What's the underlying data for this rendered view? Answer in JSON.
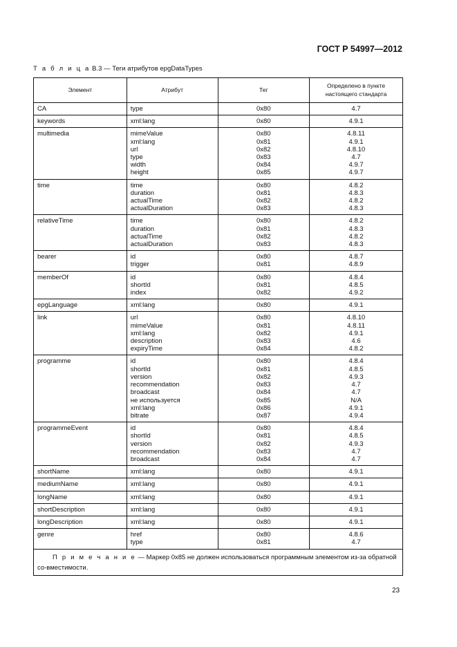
{
  "header": {
    "doc_code": "ГОСТ Р 54997—2012"
  },
  "caption": {
    "label": "Т а б л и ц а",
    "text": " В.3 — Теги атрибутов epgDataTypes"
  },
  "table": {
    "columns": [
      "Элемент",
      "Атрибут",
      "Тег",
      "Определено в пункте настоящего стандарта"
    ],
    "rows": [
      {
        "element": "CA",
        "attrs": [
          "type"
        ],
        "tags": [
          "0x80"
        ],
        "refs": [
          "4.7"
        ]
      },
      {
        "element": "keywords",
        "attrs": [
          "xml:lang"
        ],
        "tags": [
          "0x80"
        ],
        "refs": [
          "4.9.1"
        ]
      },
      {
        "element": "multimedia",
        "attrs": [
          "mimeValue",
          "xml:lang",
          "url",
          "type",
          "width",
          "height"
        ],
        "tags": [
          "0x80",
          "0x81",
          "0x82",
          "0x83",
          "0x84",
          "0x85"
        ],
        "refs": [
          "4.8.11",
          "4.9.1",
          "4.8.10",
          "4.7",
          "4.9.7",
          "4.9.7"
        ]
      },
      {
        "element": "time",
        "attrs": [
          "time",
          "duration",
          "actualTime",
          "actualDuration"
        ],
        "tags": [
          "0x80",
          "0x81",
          "0x82",
          "0x83"
        ],
        "refs": [
          "4.8.2",
          "4.8.3",
          "4.8.2",
          "4.8.3"
        ]
      },
      {
        "element": "relativeTime",
        "attrs": [
          "time",
          "duration",
          "actualTime",
          "actualDuration"
        ],
        "tags": [
          "0x80",
          "0x81",
          "0x82",
          "0x83"
        ],
        "refs": [
          "4.8.2",
          "4.8.3",
          "4.8.2",
          "4.8.3"
        ]
      },
      {
        "element": "bearer",
        "attrs": [
          "id",
          "trigger"
        ],
        "tags": [
          "0x80",
          "0x81"
        ],
        "refs": [
          "4.8.7",
          "4.8.9"
        ]
      },
      {
        "element": "memberOf",
        "attrs": [
          "id",
          "shortId",
          "index"
        ],
        "tags": [
          "0x80",
          "0x81",
          "0x82"
        ],
        "refs": [
          "4.8.4",
          "4.8.5",
          "4.9.2"
        ]
      },
      {
        "element": "epgLanguage",
        "attrs": [
          "xml:lang"
        ],
        "tags": [
          "0x80"
        ],
        "refs": [
          "4.9.1"
        ]
      },
      {
        "element": "link",
        "attrs": [
          "url",
          "mimeValue",
          "xml:lang",
          "description",
          "expiryTime"
        ],
        "tags": [
          "0x80",
          "0x81",
          "0x82",
          "0x83",
          "0x84"
        ],
        "refs": [
          "4.8.10",
          "4.8.11",
          "4.9.1",
          "4.6",
          "4.8.2"
        ]
      },
      {
        "element": "programme",
        "attrs": [
          "id",
          "shortId",
          "version",
          "recommendation",
          "broadcast",
          "не используется",
          "xml:lang",
          "bitrate"
        ],
        "tags": [
          "0x80",
          "0x81",
          "0x82",
          "0x83",
          "0x84",
          "0x85",
          "0x86",
          "0x87"
        ],
        "refs": [
          "4.8.4",
          "4.8.5",
          "4.9.3",
          "4.7",
          "4.7",
          "N/A",
          "4.9.1",
          "4.9.4"
        ]
      },
      {
        "element": "programmeEvent",
        "attrs": [
          "id",
          "shortId",
          "version",
          "recommendation",
          "broadcast"
        ],
        "tags": [
          "0x80",
          "0x81",
          "0x82",
          "0x83",
          "0x84"
        ],
        "refs": [
          "4.8.4",
          "4.8.5",
          "4.9.3",
          "4.7",
          "4.7"
        ]
      },
      {
        "element": "shortName",
        "attrs": [
          "xml:lang"
        ],
        "tags": [
          "0x80"
        ],
        "refs": [
          "4.9.1"
        ]
      },
      {
        "element": "mediumName",
        "attrs": [
          "xml:lang"
        ],
        "tags": [
          "0x80"
        ],
        "refs": [
          "4.9.1"
        ]
      },
      {
        "element": "longName",
        "attrs": [
          "xml:lang"
        ],
        "tags": [
          "0x80"
        ],
        "refs": [
          "4.9.1"
        ]
      },
      {
        "element": "shortDescription",
        "attrs": [
          "xml:lang"
        ],
        "tags": [
          "0x80"
        ],
        "refs": [
          "4.9.1"
        ]
      },
      {
        "element": "longDescription",
        "attrs": [
          "xml:lang"
        ],
        "tags": [
          "0x80"
        ],
        "refs": [
          "4.9.1"
        ]
      },
      {
        "element": "genre",
        "attrs": [
          "href",
          "type"
        ],
        "tags": [
          "0x80",
          "0x81"
        ],
        "refs": [
          "4.8.6",
          "4.7"
        ]
      }
    ],
    "note": {
      "label": "П р и м е ч а н и е",
      "text": " — Маркер 0x85 не должен использоваться программным элементом из-за обратной со-вместимости."
    }
  },
  "footer": {
    "page_number": "23"
  }
}
